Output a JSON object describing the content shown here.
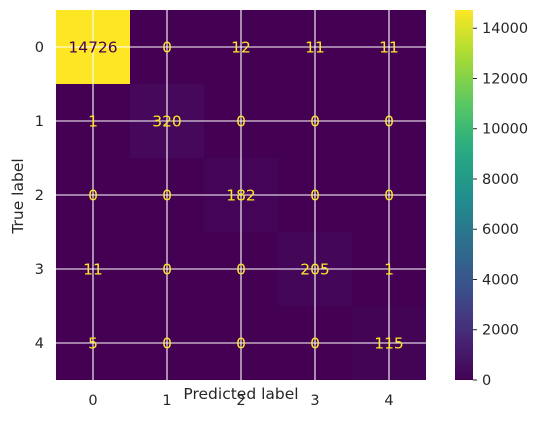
{
  "chart_data": {
    "type": "heatmap",
    "title": "",
    "xlabel": "Predicted label",
    "ylabel": "True label",
    "x_categories": [
      "0",
      "1",
      "2",
      "3",
      "4"
    ],
    "y_categories": [
      "0",
      "1",
      "2",
      "3",
      "4"
    ],
    "matrix": [
      [
        14726,
        0,
        12,
        11,
        11
      ],
      [
        1,
        320,
        0,
        0,
        0
      ],
      [
        0,
        0,
        182,
        0,
        0
      ],
      [
        11,
        0,
        0,
        205,
        1
      ],
      [
        5,
        0,
        0,
        0,
        115
      ]
    ],
    "colormap": "viridis",
    "value_range": [
      0,
      14726
    ],
    "colorbar_ticks": [
      0,
      2000,
      4000,
      6000,
      8000,
      10000,
      12000,
      14000
    ],
    "grid": true,
    "text_colors": {
      "low": "#fde725",
      "high": "#440154"
    }
  }
}
